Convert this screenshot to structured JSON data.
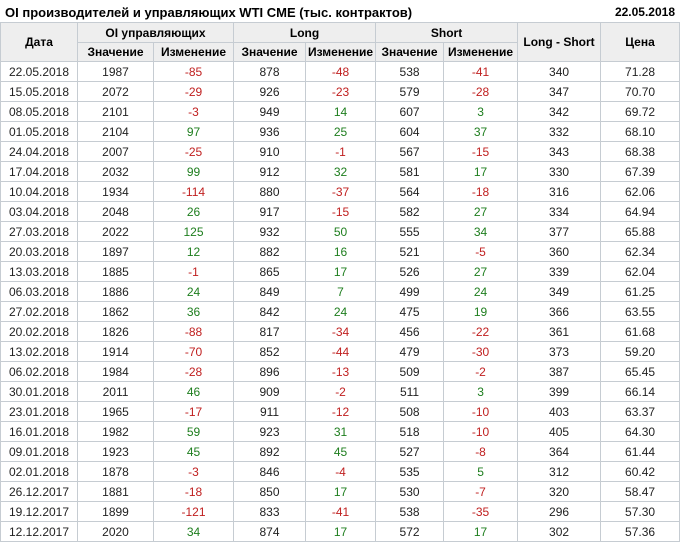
{
  "header": {
    "title": "OI производителей и управляющих WTI CME (тыс. контрактов)",
    "date": "22.05.2018"
  },
  "table": {
    "columns": {
      "date": "Дата",
      "group_oi": "OI управляющих",
      "group_long": "Long",
      "group_short": "Short",
      "long_short": "Long - Short",
      "price": "Цена",
      "sub_value": "Значение",
      "sub_change": "Изменение"
    },
    "rows": [
      {
        "date": "22.05.2018",
        "oi": "1987",
        "oi_chg": "-85",
        "long": "878",
        "long_chg": "-48",
        "short": "538",
        "short_chg": "-41",
        "ls": "340",
        "price": "71.28"
      },
      {
        "date": "15.05.2018",
        "oi": "2072",
        "oi_chg": "-29",
        "long": "926",
        "long_chg": "-23",
        "short": "579",
        "short_chg": "-28",
        "ls": "347",
        "price": "70.70"
      },
      {
        "date": "08.05.2018",
        "oi": "2101",
        "oi_chg": "-3",
        "long": "949",
        "long_chg": "14",
        "short": "607",
        "short_chg": "3",
        "ls": "342",
        "price": "69.72"
      },
      {
        "date": "01.05.2018",
        "oi": "2104",
        "oi_chg": "97",
        "long": "936",
        "long_chg": "25",
        "short": "604",
        "short_chg": "37",
        "ls": "332",
        "price": "68.10"
      },
      {
        "date": "24.04.2018",
        "oi": "2007",
        "oi_chg": "-25",
        "long": "910",
        "long_chg": "-1",
        "short": "567",
        "short_chg": "-15",
        "ls": "343",
        "price": "68.38"
      },
      {
        "date": "17.04.2018",
        "oi": "2032",
        "oi_chg": "99",
        "long": "912",
        "long_chg": "32",
        "short": "581",
        "short_chg": "17",
        "ls": "330",
        "price": "67.39"
      },
      {
        "date": "10.04.2018",
        "oi": "1934",
        "oi_chg": "-114",
        "long": "880",
        "long_chg": "-37",
        "short": "564",
        "short_chg": "-18",
        "ls": "316",
        "price": "62.06"
      },
      {
        "date": "03.04.2018",
        "oi": "2048",
        "oi_chg": "26",
        "long": "917",
        "long_chg": "-15",
        "short": "582",
        "short_chg": "27",
        "ls": "334",
        "price": "64.94"
      },
      {
        "date": "27.03.2018",
        "oi": "2022",
        "oi_chg": "125",
        "long": "932",
        "long_chg": "50",
        "short": "555",
        "short_chg": "34",
        "ls": "377",
        "price": "65.88"
      },
      {
        "date": "20.03.2018",
        "oi": "1897",
        "oi_chg": "12",
        "long": "882",
        "long_chg": "16",
        "short": "521",
        "short_chg": "-5",
        "ls": "360",
        "price": "62.34"
      },
      {
        "date": "13.03.2018",
        "oi": "1885",
        "oi_chg": "-1",
        "long": "865",
        "long_chg": "17",
        "short": "526",
        "short_chg": "27",
        "ls": "339",
        "price": "62.04"
      },
      {
        "date": "06.03.2018",
        "oi": "1886",
        "oi_chg": "24",
        "long": "849",
        "long_chg": "7",
        "short": "499",
        "short_chg": "24",
        "ls": "349",
        "price": "61.25"
      },
      {
        "date": "27.02.2018",
        "oi": "1862",
        "oi_chg": "36",
        "long": "842",
        "long_chg": "24",
        "short": "475",
        "short_chg": "19",
        "ls": "366",
        "price": "63.55"
      },
      {
        "date": "20.02.2018",
        "oi": "1826",
        "oi_chg": "-88",
        "long": "817",
        "long_chg": "-34",
        "short": "456",
        "short_chg": "-22",
        "ls": "361",
        "price": "61.68"
      },
      {
        "date": "13.02.2018",
        "oi": "1914",
        "oi_chg": "-70",
        "long": "852",
        "long_chg": "-44",
        "short": "479",
        "short_chg": "-30",
        "ls": "373",
        "price": "59.20"
      },
      {
        "date": "06.02.2018",
        "oi": "1984",
        "oi_chg": "-28",
        "long": "896",
        "long_chg": "-13",
        "short": "509",
        "short_chg": "-2",
        "ls": "387",
        "price": "65.45"
      },
      {
        "date": "30.01.2018",
        "oi": "2011",
        "oi_chg": "46",
        "long": "909",
        "long_chg": "-2",
        "short": "511",
        "short_chg": "3",
        "ls": "399",
        "price": "66.14"
      },
      {
        "date": "23.01.2018",
        "oi": "1965",
        "oi_chg": "-17",
        "long": "911",
        "long_chg": "-12",
        "short": "508",
        "short_chg": "-10",
        "ls": "403",
        "price": "63.37"
      },
      {
        "date": "16.01.2018",
        "oi": "1982",
        "oi_chg": "59",
        "long": "923",
        "long_chg": "31",
        "short": "518",
        "short_chg": "-10",
        "ls": "405",
        "price": "64.30"
      },
      {
        "date": "09.01.2018",
        "oi": "1923",
        "oi_chg": "45",
        "long": "892",
        "long_chg": "45",
        "short": "527",
        "short_chg": "-8",
        "ls": "364",
        "price": "61.44"
      },
      {
        "date": "02.01.2018",
        "oi": "1878",
        "oi_chg": "-3",
        "long": "846",
        "long_chg": "-4",
        "short": "535",
        "short_chg": "5",
        "ls": "312",
        "price": "60.42"
      },
      {
        "date": "26.12.2017",
        "oi": "1881",
        "oi_chg": "-18",
        "long": "850",
        "long_chg": "17",
        "short": "530",
        "short_chg": "-7",
        "ls": "320",
        "price": "58.47"
      },
      {
        "date": "19.12.2017",
        "oi": "1899",
        "oi_chg": "-121",
        "long": "833",
        "long_chg": "-41",
        "short": "538",
        "short_chg": "-35",
        "ls": "296",
        "price": "57.30"
      },
      {
        "date": "12.12.2017",
        "oi": "2020",
        "oi_chg": "34",
        "long": "874",
        "long_chg": "17",
        "short": "572",
        "short_chg": "17",
        "ls": "302",
        "price": "57.36"
      }
    ]
  },
  "colors": {
    "positive": "#1e7e1e",
    "negative": "#c02020",
    "header_bg": "#eeeeee",
    "border": "#c6ccd2",
    "month_border": "#a9b1b8"
  }
}
